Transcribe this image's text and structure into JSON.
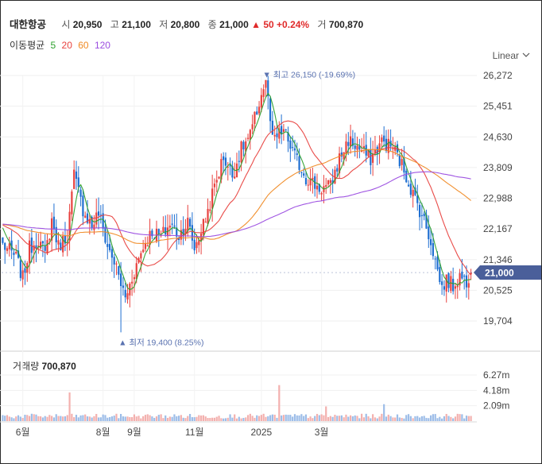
{
  "header": {
    "stock_name": "대한항공",
    "open_label": "시",
    "open": "20,950",
    "high_label": "고",
    "high": "21,100",
    "low_label": "저",
    "low": "20,800",
    "close_label": "종",
    "close": "21,000",
    "change": "50",
    "change_pct": "+0.24%",
    "volume_label": "거",
    "volume": "700,870"
  },
  "moving_average": {
    "label": "이동평균",
    "periods": [
      {
        "label": "5",
        "color": "#2ca02c"
      },
      {
        "label": "20",
        "color": "#e8423f"
      },
      {
        "label": "60",
        "color": "#f08a24"
      },
      {
        "label": "120",
        "color": "#9b4de0"
      }
    ]
  },
  "scale_mode": "Linear",
  "colors": {
    "up": "#e8423f",
    "down": "#1f6fd1",
    "current_tag": "#4a5f9a",
    "annotation": "#5a72b0"
  },
  "annotations": {
    "max": "최고 26,150 (-19.69%)",
    "min": "최저 19,400 (8.25%)"
  },
  "current_price_tag": "21,000",
  "volume_panel": {
    "label": "거래량",
    "value": "700,870"
  },
  "chart_data": {
    "type": "candlestick",
    "price_axis": {
      "ticks": [
        "26,272",
        "25,451",
        "24,630",
        "23,809",
        "22,988",
        "22,167",
        "21,346",
        "20,525",
        "19,704"
      ],
      "range": [
        19400,
        26500
      ]
    },
    "volume_axis": {
      "ticks": [
        "6.27m",
        "4.18m",
        "2.09m"
      ],
      "range": [
        0,
        7000000
      ]
    },
    "x_axis": {
      "ticks": [
        "6월",
        "8월",
        "9월",
        "11월",
        "2025",
        "3월"
      ]
    },
    "anchors": [
      [
        0,
        21750
      ],
      [
        6,
        21400
      ],
      [
        9,
        20850
      ],
      [
        12,
        21650
      ],
      [
        16,
        21900
      ],
      [
        19,
        21450
      ],
      [
        22,
        22400
      ],
      [
        25,
        21700
      ],
      [
        29,
        22000
      ],
      [
        32,
        23600
      ],
      [
        36,
        22700
      ],
      [
        40,
        22250
      ],
      [
        43,
        22600
      ],
      [
        47,
        21700
      ],
      [
        50,
        21300
      ],
      [
        53,
        20700
      ],
      [
        55,
        20300
      ],
      [
        59,
        21050
      ],
      [
        63,
        21700
      ],
      [
        67,
        22100
      ],
      [
        71,
        21950
      ],
      [
        75,
        22300
      ],
      [
        79,
        22000
      ],
      [
        83,
        22350
      ],
      [
        86,
        21650
      ],
      [
        91,
        22450
      ],
      [
        95,
        23300
      ],
      [
        99,
        24100
      ],
      [
        103,
        23600
      ],
      [
        107,
        24300
      ],
      [
        111,
        24650
      ],
      [
        115,
        25550
      ],
      [
        118,
        26150
      ],
      [
        121,
        24500
      ],
      [
        126,
        24800
      ],
      [
        131,
        24100
      ],
      [
        136,
        23550
      ],
      [
        142,
        23250
      ],
      [
        147,
        23300
      ],
      [
        151,
        24050
      ],
      [
        155,
        24550
      ],
      [
        160,
        24300
      ],
      [
        165,
        24050
      ],
      [
        170,
        24500
      ],
      [
        175,
        24350
      ],
      [
        180,
        23750
      ],
      [
        184,
        23100
      ],
      [
        188,
        22550
      ],
      [
        192,
        21850
      ],
      [
        195,
        21050
      ],
      [
        197,
        20600
      ],
      [
        199,
        20800
      ],
      [
        202,
        20650
      ],
      [
        205,
        20900
      ],
      [
        208,
        20800
      ],
      [
        210,
        21000
      ]
    ],
    "volume_spikes": [
      [
        30,
        3900000
      ],
      [
        124,
        4900000
      ],
      [
        145,
        2000000
      ],
      [
        171,
        2300000
      ]
    ],
    "moving_averages": [
      5,
      20,
      60,
      120
    ],
    "max": {
      "value": 26150,
      "label": "최고 26,150 (-19.69%)"
    },
    "min": {
      "value": 19400,
      "label": "최저 19,400 (8.25%)"
    },
    "last_close": 21000
  }
}
